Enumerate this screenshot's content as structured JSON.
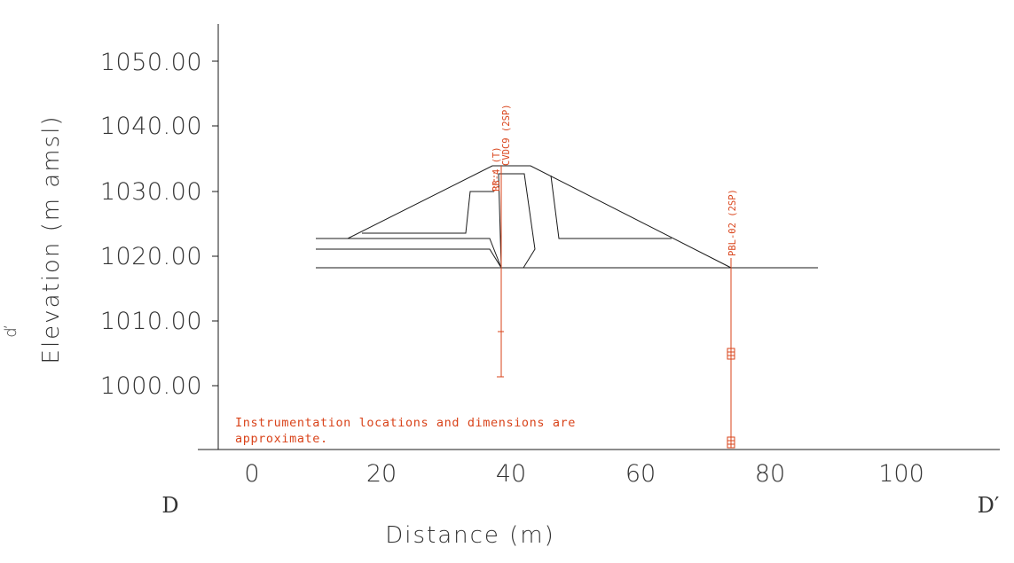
{
  "figure": {
    "corner_mark": "ď",
    "xlabel": "Distance (m)",
    "ylabel": "Elevation (m amsl)",
    "section_start": "D",
    "section_end": "D′",
    "y_ticks": [
      "1000.00",
      "1010.00",
      "1020.00",
      "1030.00",
      "1040.00",
      "1050.00"
    ],
    "x_ticks": [
      "0",
      "20",
      "40",
      "60",
      "80",
      "100"
    ],
    "note_line1": "Instrumentation locations and dimensions are",
    "note_line2": "approximate.",
    "instruments": {
      "inst1_a": "BB-4 (T)",
      "inst1_b": "CVDC9 (2SP)",
      "inst2": "PBL-02 (2SP)"
    },
    "colors": {
      "line": "#1a1a1a",
      "instrument": "#d9431a",
      "axis_text": "#333333"
    }
  },
  "chart_data": {
    "type": "diagram-cross-section",
    "xlim": [
      -5,
      115
    ],
    "ylim": [
      990,
      1055
    ],
    "dam_outline": {
      "ground": [
        [
          10,
          1018
        ],
        [
          87.5,
          1018
        ]
      ],
      "upstream_face": [
        [
          15,
          1022.5
        ],
        [
          38,
          1033.5
        ]
      ],
      "crest": [
        [
          38,
          1033.5
        ],
        [
          43,
          1033.5
        ]
      ],
      "downstream_face": [
        [
          43,
          1033.5
        ],
        [
          74,
          1018
        ]
      ]
    },
    "instruments": [
      {
        "name": "BB-4 (T) / CVDC9 (2SP)",
        "x": 38.5,
        "top": 1033.5,
        "bottom": 1001.5
      },
      {
        "name": "PBL-02 (2SP)",
        "x": 74,
        "top": 1019.5,
        "bottom": 990.3
      }
    ]
  }
}
